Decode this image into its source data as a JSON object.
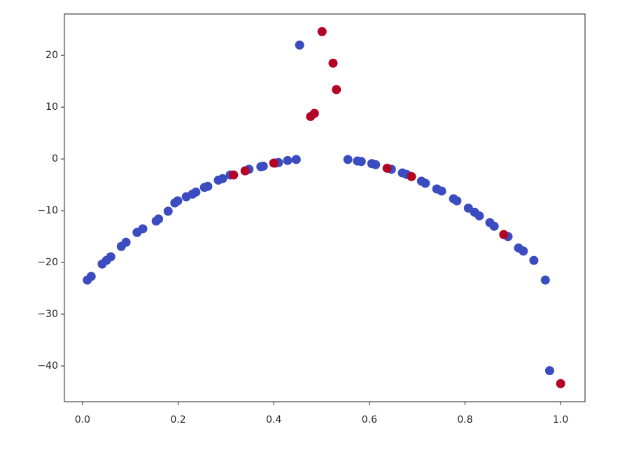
{
  "chart_data": {
    "type": "scatter",
    "series": [
      {
        "color": "#3b4cc0",
        "x": [
          0.01,
          0.018,
          0.041,
          0.05,
          0.059,
          0.081,
          0.091,
          0.114,
          0.126,
          0.154,
          0.159,
          0.179,
          0.193,
          0.199,
          0.217,
          0.23,
          0.237,
          0.255,
          0.262,
          0.284,
          0.293,
          0.309,
          0.348,
          0.373,
          0.378,
          0.404,
          0.41,
          0.429,
          0.447,
          0.555,
          0.575,
          0.583,
          0.605,
          0.613,
          0.646,
          0.669,
          0.678,
          0.709,
          0.717,
          0.741,
          0.751,
          0.776,
          0.783,
          0.807,
          0.82,
          0.83,
          0.852,
          0.861,
          0.89,
          0.912,
          0.922,
          0.944,
          0.968,
          0.977,
          0.454
        ],
        "values": [
          -23.4,
          -22.7,
          -20.3,
          -19.6,
          -18.9,
          -16.9,
          -16.1,
          -14.2,
          -13.5,
          -12.0,
          -11.6,
          -10.1,
          -8.5,
          -8.1,
          -7.3,
          -6.8,
          -6.4,
          -5.5,
          -5.3,
          -4.1,
          -3.8,
          -3.1,
          -2.0,
          -1.5,
          -1.4,
          -0.8,
          -0.7,
          -0.3,
          -0.1,
          -0.1,
          -0.4,
          -0.5,
          -0.9,
          -1.1,
          -2.0,
          -2.7,
          -3.0,
          -4.3,
          -4.7,
          -5.8,
          -6.2,
          -7.7,
          -8.1,
          -9.5,
          -10.3,
          -11.0,
          -12.3,
          -13.0,
          -15.0,
          -17.2,
          -17.8,
          -19.6,
          -23.4,
          -40.9,
          22.0
        ]
      },
      {
        "color": "#b40426",
        "x": [
          0.316,
          0.34,
          0.4,
          0.637,
          0.688,
          0.881,
          1.0,
          0.501,
          0.524,
          0.531,
          0.477,
          0.485
        ],
        "values": [
          -3.1,
          -2.3,
          -0.8,
          -1.8,
          -3.4,
          -14.6,
          -43.4,
          24.6,
          18.5,
          13.4,
          8.2,
          8.8
        ]
      }
    ],
    "xlim": [
      -0.038,
      1.051
    ],
    "ylim": [
      -46.9,
      28.0
    ],
    "xticks": [
      {
        "value": 0,
        "label": "0.0"
      },
      0.2,
      0.4,
      0.6,
      0.8,
      {
        "value": 1,
        "label": "1.0"
      }
    ],
    "yticks": [
      {
        "value": -40,
        "label": "−40"
      },
      {
        "value": -30,
        "label": "−30"
      },
      {
        "value": -20,
        "label": "−20"
      },
      {
        "value": -10,
        "label": "−10"
      },
      0,
      10,
      20
    ]
  }
}
